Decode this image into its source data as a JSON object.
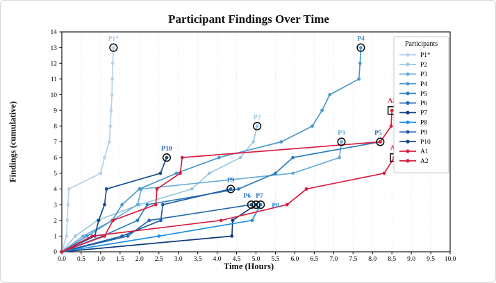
{
  "chart_data": {
    "type": "line",
    "title": "Participant Findings Over Time",
    "xlabel": "Time (Hours)",
    "ylabel": "Findings (cumulative)",
    "xlim": [
      0,
      10
    ],
    "ylim": [
      0,
      14
    ],
    "xtick_step": 0.5,
    "ytick_step": 1,
    "grid": "vertical-dotted",
    "grid_color": "#d9d9d9",
    "legend_title": "Participants",
    "legend_position": "upper-right",
    "axis_color": "#000000",
    "series": [
      {
        "name": "P1*",
        "color": "#b8d1e7",
        "label_color": "#aac8e4",
        "end_marker": "circle",
        "label_dx": 0,
        "label_dy": -10,
        "points": [
          [
            0,
            0
          ],
          [
            0.12,
            1
          ],
          [
            0.14,
            2
          ],
          [
            0.16,
            3
          ],
          [
            0.18,
            4
          ],
          [
            1.0,
            5
          ],
          [
            1.1,
            6
          ],
          [
            1.22,
            7
          ],
          [
            1.25,
            8
          ],
          [
            1.27,
            9
          ],
          [
            1.29,
            10
          ],
          [
            1.3,
            11
          ],
          [
            1.31,
            12
          ],
          [
            1.33,
            13
          ]
        ]
      },
      {
        "name": "P2",
        "color": "#9ac8e2",
        "label_color": "#9ac8e2",
        "end_marker": "circle",
        "label_dx": 0,
        "label_dy": -10,
        "points": [
          [
            0,
            0
          ],
          [
            0.35,
            1
          ],
          [
            0.92,
            2
          ],
          [
            2.0,
            3
          ],
          [
            3.35,
            4
          ],
          [
            3.8,
            5
          ],
          [
            4.6,
            6
          ],
          [
            4.93,
            7
          ],
          [
            5.03,
            8
          ]
        ]
      },
      {
        "name": "P3",
        "color": "#69add7",
        "label_color": "#69add7",
        "end_marker": "circle",
        "label_dx": 0,
        "label_dy": -10,
        "points": [
          [
            0,
            0
          ],
          [
            0.55,
            1
          ],
          [
            1.3,
            2
          ],
          [
            1.95,
            3
          ],
          [
            2.05,
            4
          ],
          [
            5.95,
            5
          ],
          [
            7.15,
            6
          ],
          [
            7.2,
            7
          ]
        ]
      },
      {
        "name": "P4",
        "color": "#4a98cb",
        "label_color": "#3f8ec6",
        "end_marker": "circle",
        "label_dx": 0,
        "label_dy": -10,
        "points": [
          [
            0,
            0
          ],
          [
            0.65,
            1
          ],
          [
            1.3,
            2
          ],
          [
            1.55,
            3
          ],
          [
            2.0,
            4
          ],
          [
            2.95,
            5
          ],
          [
            4.05,
            6
          ],
          [
            5.65,
            7
          ],
          [
            6.45,
            8
          ],
          [
            6.7,
            9
          ],
          [
            6.9,
            10
          ],
          [
            7.65,
            11
          ],
          [
            7.68,
            12
          ],
          [
            7.7,
            13
          ]
        ]
      },
      {
        "name": "P5",
        "color": "#2e7ebd",
        "label_color": "#2a6db5",
        "end_marker": "circle",
        "label_dx": -3,
        "label_dy": -10,
        "points": [
          [
            0,
            0
          ],
          [
            1.05,
            1
          ],
          [
            1.95,
            2
          ],
          [
            2.2,
            3
          ],
          [
            4.55,
            4
          ],
          [
            5.5,
            5
          ],
          [
            5.95,
            6
          ],
          [
            8.2,
            7
          ]
        ]
      },
      {
        "name": "P6",
        "color": "#2169af",
        "label_color": "#2a72c7",
        "end_marker": "circle",
        "label_dx": -6,
        "label_dy": -10,
        "points": [
          [
            0,
            0
          ],
          [
            1.7,
            1
          ],
          [
            2.25,
            2
          ],
          [
            4.88,
            3
          ]
        ]
      },
      {
        "name": "P7",
        "color": "#0d3b7d",
        "label_color": "#2a72c7",
        "end_marker": "circle",
        "label_dx": 5,
        "label_dy": -10,
        "points": [
          [
            0,
            0
          ],
          [
            4.38,
            1
          ],
          [
            4.4,
            2
          ],
          [
            5.0,
            3
          ]
        ]
      },
      {
        "name": "P8",
        "color": "#1e8fea",
        "label_color": "#2a86d8",
        "end_marker": "circle",
        "label_dx": 16,
        "label_dy": 4,
        "points": [
          [
            0,
            0
          ],
          [
            2.5,
            1
          ],
          [
            4.9,
            2
          ],
          [
            5.12,
            3
          ]
        ]
      },
      {
        "name": "P9",
        "color": "#1d5fa8",
        "label_color": "#2a72c7",
        "end_marker": "circle",
        "label_dx": 0,
        "label_dy": -10,
        "points": [
          [
            0,
            0
          ],
          [
            1.55,
            1
          ],
          [
            2.55,
            2
          ],
          [
            2.6,
            3
          ],
          [
            4.35,
            4
          ]
        ]
      },
      {
        "name": "P10",
        "color": "#164b91",
        "label_color": "#2160b0",
        "end_marker": "circle",
        "label_dx": 0,
        "label_dy": -10,
        "points": [
          [
            0,
            0
          ],
          [
            0.85,
            1
          ],
          [
            0.95,
            2
          ],
          [
            1.1,
            3
          ],
          [
            1.15,
            4
          ],
          [
            2.54,
            5
          ],
          [
            2.7,
            6
          ]
        ]
      },
      {
        "name": "A1",
        "color": "#d81e3f",
        "label_color": "#d81e3f",
        "end_marker": "square",
        "label_dx": 0,
        "label_dy": -11,
        "points": [
          [
            0,
            0
          ],
          [
            0.78,
            1
          ],
          [
            4.1,
            2
          ],
          [
            5.8,
            3
          ],
          [
            6.3,
            4
          ],
          [
            8.3,
            5
          ],
          [
            8.56,
            6
          ]
        ]
      },
      {
        "name": "A2",
        "color": "#d81e3f",
        "label_color": "#d81e3f",
        "end_marker": "square",
        "label_dx": 0,
        "label_dy": -11,
        "points": [
          [
            0,
            0
          ],
          [
            1.1,
            1
          ],
          [
            1.32,
            2
          ],
          [
            2.42,
            3
          ],
          [
            2.45,
            4
          ],
          [
            3.05,
            5
          ],
          [
            3.1,
            6
          ],
          [
            8.2,
            7
          ],
          [
            8.48,
            8
          ],
          [
            8.5,
            9
          ]
        ]
      }
    ]
  }
}
